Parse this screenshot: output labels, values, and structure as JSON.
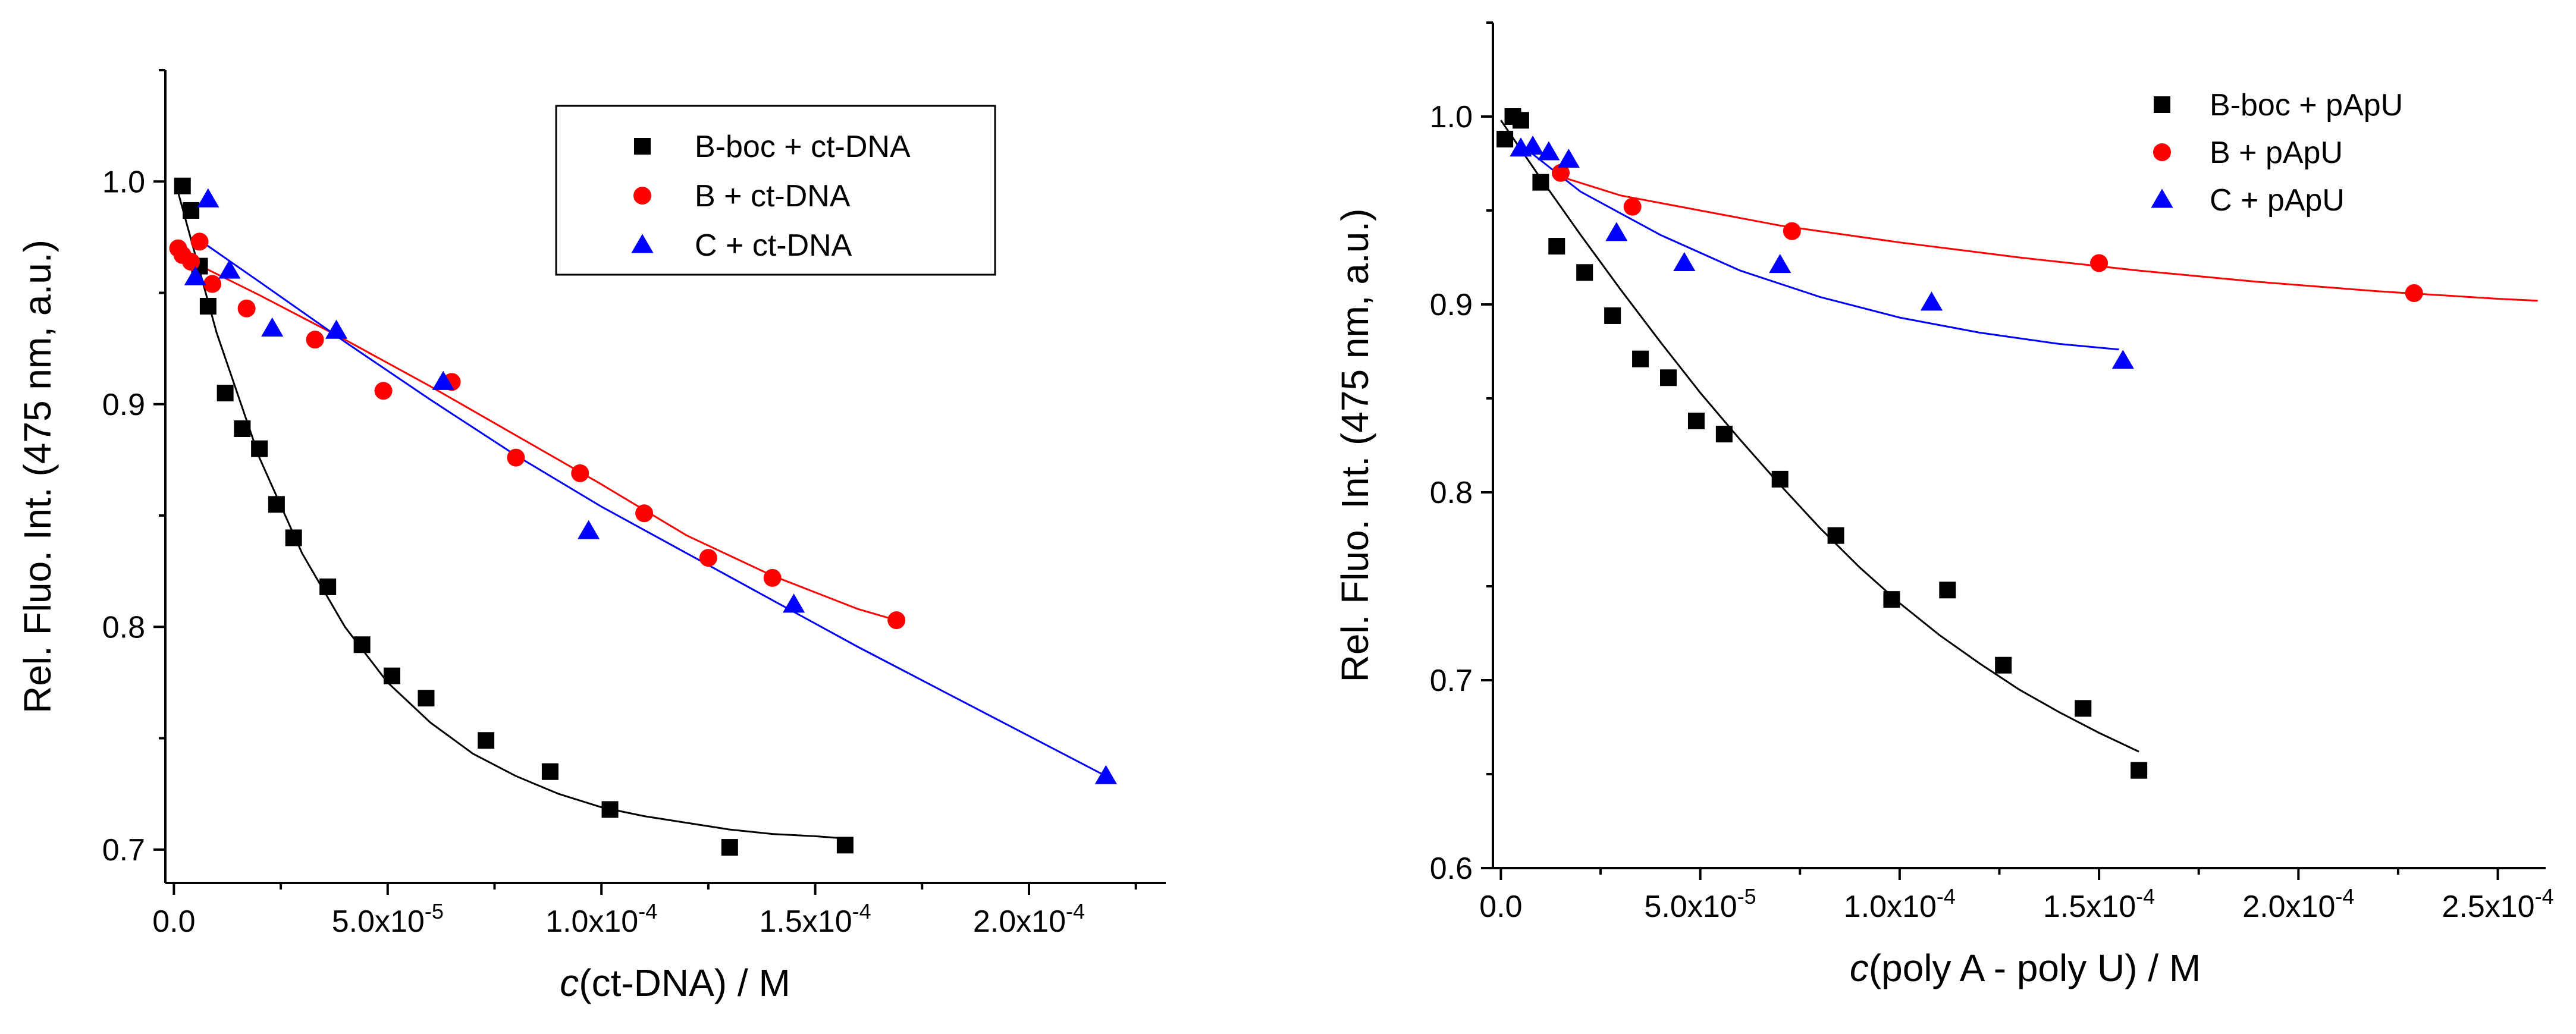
{
  "chart_data": [
    {
      "type": "scatter",
      "xlabel_italic": "c",
      "xlabel_rest": "(ct-DNA) / M",
      "ylabel": "Rel. Fluo. Int. (475 nm, a.u.)",
      "xlim": [
        -2e-06,
        0.000232
      ],
      "ylim": [
        0.685,
        1.05
      ],
      "x_ticks": [
        {
          "value": 0,
          "label": "0.0",
          "exp": ""
        },
        {
          "value": 5e-05,
          "label": "5.0x10",
          "exp": "-5"
        },
        {
          "value": 0.0001,
          "label": "1.0x10",
          "exp": "-4"
        },
        {
          "value": 0.00015,
          "label": "1.5x10",
          "exp": "-4"
        },
        {
          "value": 0.0002,
          "label": "2.0x10",
          "exp": "-4"
        }
      ],
      "y_ticks": [
        {
          "value": 0.7,
          "label": "0.7"
        },
        {
          "value": 0.8,
          "label": "0.8"
        },
        {
          "value": 0.9,
          "label": "0.9"
        },
        {
          "value": 1.0,
          "label": "1.0"
        }
      ],
      "legend_position": "top-right",
      "series": [
        {
          "name": "B-boc + ct-DNA",
          "marker": "square",
          "color": "#000000",
          "x": [
            2e-06,
            4e-06,
            6e-06,
            8e-06,
            1.2e-05,
            1.6e-05,
            2e-05,
            2.4e-05,
            2.8e-05,
            3.6e-05,
            4.4e-05,
            5.1e-05,
            5.9e-05,
            7.3e-05,
            8.8e-05,
            0.000102,
            0.00013,
            0.000157
          ],
          "y": [
            0.998,
            0.987,
            0.962,
            0.944,
            0.905,
            0.889,
            0.88,
            0.855,
            0.84,
            0.818,
            0.792,
            0.778,
            0.768,
            0.749,
            0.735,
            0.718,
            0.701,
            0.702
          ],
          "fit": {
            "x": [
              1e-06,
              1e-05,
              2e-05,
              3e-05,
              4e-05,
              5e-05,
              6e-05,
              7e-05,
              8e-05,
              9e-05,
              0.0001,
              0.00011,
              0.00012,
              0.00013,
              0.00014,
              0.00015,
              0.000157
            ],
            "y": [
              0.995,
              0.932,
              0.876,
              0.833,
              0.8,
              0.775,
              0.757,
              0.743,
              0.733,
              0.725,
              0.719,
              0.715,
              0.712,
              0.709,
              0.707,
              0.706,
              0.705
            ]
          }
        },
        {
          "name": "B + ct-DNA",
          "marker": "circle",
          "color": "#ff0000",
          "x": [
            1e-06,
            2e-06,
            4e-06,
            6e-06,
            9e-06,
            1.7e-05,
            3.3e-05,
            4.9e-05,
            6.5e-05,
            8e-05,
            9.5e-05,
            0.00011,
            0.000125,
            0.00014,
            0.000169
          ],
          "y": [
            0.97,
            0.967,
            0.964,
            0.973,
            0.954,
            0.943,
            0.929,
            0.906,
            0.91,
            0.876,
            0.869,
            0.851,
            0.831,
            0.822,
            0.803
          ],
          "fit": {
            "x": [
              0,
              2e-05,
              4e-05,
              6e-05,
              8e-05,
              0.0001,
              0.00012,
              0.00014,
              0.00016,
              0.000169
            ],
            "y": [
              0.968,
              0.949,
              0.929,
              0.908,
              0.886,
              0.864,
              0.841,
              0.823,
              0.808,
              0.803
            ]
          }
        },
        {
          "name": "C + ct-DNA",
          "marker": "triangle",
          "color": "#0000ff",
          "x": [
            5e-06,
            8e-06,
            1.3e-05,
            2.3e-05,
            3.8e-05,
            6.3e-05,
            9.7e-05,
            0.000145,
            0.000218
          ],
          "y": [
            0.957,
            0.992,
            0.96,
            0.934,
            0.933,
            0.91,
            0.843,
            0.81,
            0.733
          ],
          "fit": {
            "x": [
              5e-06,
              2e-05,
              4e-05,
              6e-05,
              8e-05,
              0.0001,
              0.00012,
              0.00014,
              0.00016,
              0.00018,
              0.0002,
              0.000218
            ],
            "y": [
              0.975,
              0.955,
              0.928,
              0.902,
              0.877,
              0.854,
              0.833,
              0.812,
              0.791,
              0.771,
              0.751,
              0.733
            ]
          }
        }
      ]
    },
    {
      "type": "scatter",
      "xlabel_italic": "c",
      "xlabel_rest": "(poly A - poly U) / M",
      "ylabel": "Rel. Fluo. Int. (475 nm, a.u.)",
      "xlim": [
        -2e-06,
        0.000262
      ],
      "ylim": [
        0.6,
        1.05
      ],
      "x_ticks": [
        {
          "value": 0,
          "label": "0.0",
          "exp": ""
        },
        {
          "value": 5e-05,
          "label": "5.0x10",
          "exp": "-5"
        },
        {
          "value": 0.0001,
          "label": "1.0x10",
          "exp": "-4"
        },
        {
          "value": 0.00015,
          "label": "1.5x10",
          "exp": "-4"
        },
        {
          "value": 0.0002,
          "label": "2.0x10",
          "exp": "-4"
        },
        {
          "value": 0.00025,
          "label": "2.5x10",
          "exp": "-4"
        }
      ],
      "y_ticks": [
        {
          "value": 0.6,
          "label": "0.6"
        },
        {
          "value": 0.7,
          "label": "0.7"
        },
        {
          "value": 0.8,
          "label": "0.8"
        },
        {
          "value": 0.9,
          "label": "0.9"
        },
        {
          "value": 1.0,
          "label": "1.0"
        }
      ],
      "legend_position": "top-right",
      "series": [
        {
          "name": "B-boc + pApU",
          "marker": "square",
          "color": "#000000",
          "x": [
            1e-06,
            3e-06,
            5e-06,
            1e-05,
            1.4e-05,
            2.1e-05,
            2.8e-05,
            3.5e-05,
            4.2e-05,
            4.9e-05,
            5.6e-05,
            7e-05,
            8.4e-05,
            9.8e-05,
            0.000112,
            0.000126,
            0.000146,
            0.00016
          ],
          "y": [
            0.988,
            1.0,
            0.998,
            0.965,
            0.931,
            0.917,
            0.894,
            0.871,
            0.861,
            0.838,
            0.831,
            0.807,
            0.777,
            0.743,
            0.748,
            0.708,
            0.685,
            0.652
          ],
          "fit": {
            "x": [
              0,
              1e-05,
              2e-05,
              3e-05,
              4e-05,
              5e-05,
              6e-05,
              7e-05,
              8e-05,
              9e-05,
              0.0001,
              0.00011,
              0.00012,
              0.00013,
              0.00014,
              0.00015,
              0.00016
            ],
            "y": [
              0.998,
              0.967,
              0.937,
              0.908,
              0.88,
              0.853,
              0.828,
              0.804,
              0.781,
              0.76,
              0.741,
              0.724,
              0.709,
              0.695,
              0.683,
              0.672,
              0.662
            ]
          }
        },
        {
          "name": "B + pApU",
          "marker": "circle",
          "color": "#ff0000",
          "x": [
            1.5e-05,
            3.3e-05,
            7.3e-05,
            0.00015,
            0.000229
          ],
          "y": [
            0.97,
            0.952,
            0.939,
            0.922,
            0.906
          ],
          "fit": {
            "x": [
              1.5e-05,
              3e-05,
              5e-05,
              7e-05,
              0.0001,
              0.00013,
              0.00016,
              0.00019,
              0.00022,
              0.00025,
              0.00026
            ],
            "y": [
              0.968,
              0.958,
              0.95,
              0.942,
              0.933,
              0.925,
              0.918,
              0.912,
              0.907,
              0.903,
              0.902
            ]
          }
        },
        {
          "name": "C + pApU",
          "marker": "triangle",
          "color": "#0000ff",
          "x": [
            5e-06,
            8e-06,
            1.2e-05,
            1.7e-05,
            2.9e-05,
            4.6e-05,
            7e-05,
            0.000108,
            0.000156
          ],
          "y": [
            0.983,
            0.984,
            0.981,
            0.977,
            0.938,
            0.922,
            0.921,
            0.901,
            0.87
          ],
          "fit": {
            "x": [
              5e-06,
              2e-05,
              4e-05,
              6e-05,
              8e-05,
              0.0001,
              0.00012,
              0.00014,
              0.000155
            ],
            "y": [
              0.985,
              0.96,
              0.937,
              0.918,
              0.904,
              0.893,
              0.885,
              0.879,
              0.876
            ]
          }
        }
      ]
    }
  ]
}
